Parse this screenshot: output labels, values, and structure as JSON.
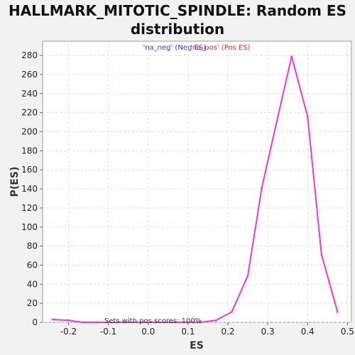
{
  "chart_data": {
    "type": "line",
    "title": "HALLMARK_MITOTIC_SPINDLE: Random ES\ndistribution",
    "xlabel": "ES",
    "ylabel": "P(ES)",
    "xlim": [
      -0.265,
      0.51
    ],
    "ylim": [
      0,
      295
    ],
    "xticks": [
      -0.2,
      -0.1,
      0.0,
      0.1,
      0.2,
      0.3,
      0.4,
      0.5
    ],
    "xtick_labels": [
      "-0.2",
      "-0.1",
      "0.0",
      "0.1",
      "0.2",
      "0.3",
      "0.4",
      "0.5"
    ],
    "yticks": [
      0,
      20,
      40,
      60,
      80,
      100,
      120,
      140,
      160,
      180,
      200,
      220,
      240,
      260,
      280
    ],
    "ytick_labels": [
      "0",
      "20",
      "40",
      "60",
      "80",
      "100",
      "120",
      "140",
      "160",
      "180",
      "200",
      "220",
      "240",
      "260",
      "280"
    ],
    "grid": true,
    "legend": {
      "placement": "top-center",
      "entries": [
        {
          "text": "'na_neg' (Neg ES)",
          "color": "#3333ff"
        },
        {
          "text": "'na_pos' (Pos ES)",
          "color": "#ff2222"
        }
      ]
    },
    "annotation": "Sets with pos scores: 100%",
    "series": [
      {
        "color": "#ee33ee",
        "x": [
          -0.24,
          -0.2,
          -0.165,
          -0.13,
          -0.1,
          -0.06,
          -0.02,
          0.02,
          0.06,
          0.1,
          0.13,
          0.17,
          0.21,
          0.25,
          0.285,
          0.325,
          0.36,
          0.4,
          0.435,
          0.475
        ],
        "y": [
          3,
          2,
          0,
          0,
          0,
          0,
          0,
          0,
          0,
          0,
          0,
          2,
          11,
          49,
          141,
          215,
          279,
          216,
          71,
          11
        ]
      }
    ]
  }
}
